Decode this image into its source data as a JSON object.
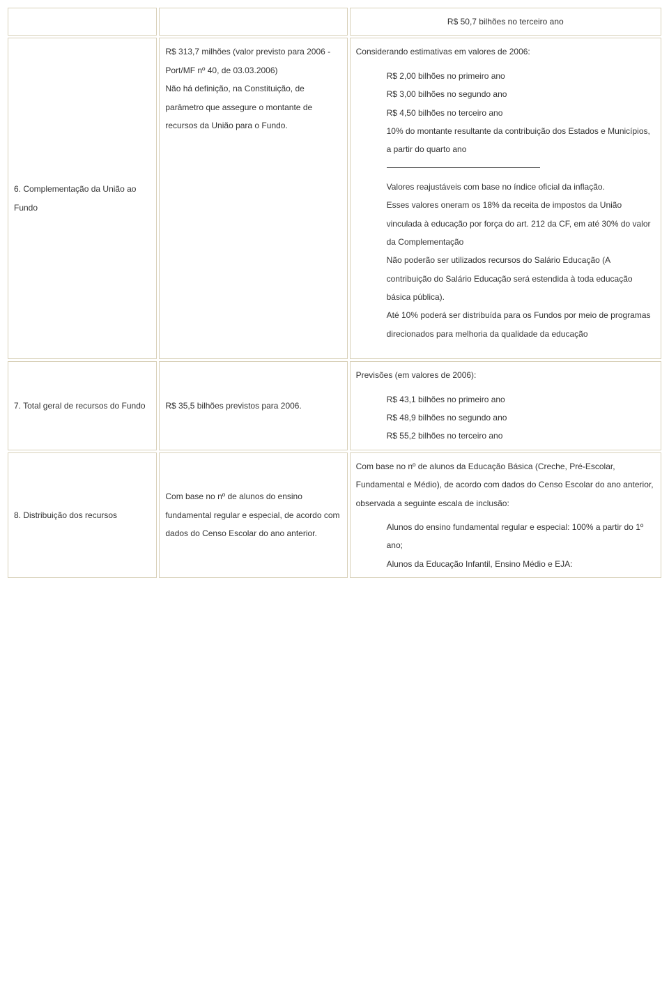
{
  "rows": [
    {
      "col1": "",
      "col2": "",
      "col3_lines": [
        "R$ 50,7 bilhões no terceiro ano"
      ],
      "col3_centered": true
    },
    {
      "col1": "6. Complementação da União ao Fundo",
      "col2_lines": [
        "R$ 313,7  milhões (valor previsto para 2006 - Port/MF nº 40, de 03.03.2006)",
        "Não há definição, na Constituição, de parâmetro que assegure o montante de recursos da União para o Fundo."
      ],
      "col3_intro": "Considerando estimativas em valores de 2006:",
      "col3_list1": [
        "R$ 2,00 bilhões no primeiro ano",
        "R$ 3,00 bilhões no segundo ano",
        "R$ 4,50 bilhões no terceiro ano",
        "10% do montante resultante da contribuição dos Estados e Municípios, a partir do quarto ano"
      ],
      "col3_list2": [
        "Valores reajustáveis com base no índice oficial da inflação.",
        "Esses valores oneram os 18% da receita de impostos da União vinculada à educação por força do art. 212 da CF, em até 30% do valor da Complementação",
        "Não poderão ser utilizados recursos do Salário Educação (A contribuição do Salário Educação será estendida à toda educação básica pública).",
        "Até 10% poderá ser distribuída para os Fundos por meio de programas direcionados para melhoria da qualidade da educação"
      ]
    },
    {
      "col1": "7. Total geral de recursos do Fundo",
      "col2_lines": [
        "R$ 35,5 bilhões previstos para 2006."
      ],
      "col3_intro": "Previsões (em valores de 2006):",
      "col3_list1": [
        "R$ 43,1 bilhões no primeiro ano",
        "R$ 48,9 bilhões no segundo ano",
        "R$ 55,2 bilhões no terceiro ano"
      ]
    },
    {
      "col1": "8. Distribuição dos recursos",
      "col2_lines": [
        "Com base no nº de alunos do ensino fundamental regular e especial, de acordo com dados do Censo Escolar do ano anterior."
      ],
      "col3_intro": "Com base no nº de alunos da Educação Básica (Creche, Pré-Escolar, Fundamental e Médio), de acordo com dados do Censo Escolar do ano anterior, observada a seguinte escala de inclusão:",
      "col3_list1": [
        "Alunos do ensino fundamental regular e especial: 100% a partir do 1º ano;",
        "Alunos da Educação Infantil, Ensino Médio e EJA:"
      ]
    }
  ]
}
